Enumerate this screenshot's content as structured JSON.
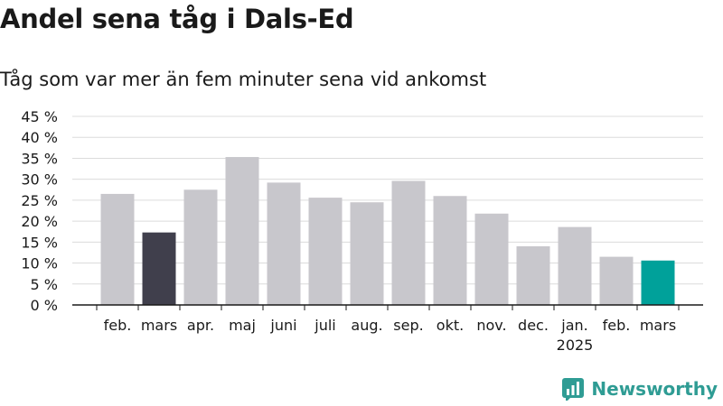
{
  "title": "Andel sena tåg i Dals-Ed",
  "subtitle": "Tåg som var mer än fem minuter sena vid ankomst",
  "brand": {
    "name": "Newsworthy"
  },
  "colors": {
    "bar": "#c8c7cc",
    "highlight_dark": "#403f4c",
    "highlight_current": "#00a19a",
    "grid": "#dcdcdc",
    "axis": "#1a1a1a",
    "brand": "#2f9c94"
  },
  "chart_data": {
    "type": "bar",
    "categories": [
      "feb.",
      "mars",
      "apr.",
      "maj",
      "juni",
      "juli",
      "aug.",
      "sep.",
      "okt.",
      "nov.",
      "dec.",
      "jan.",
      "feb.",
      "mars"
    ],
    "values": [
      26.5,
      17.3,
      27.5,
      35.3,
      29.2,
      25.6,
      24.5,
      29.6,
      26.0,
      21.8,
      14.0,
      18.6,
      11.5,
      10.6
    ],
    "bar_colors": [
      "#c8c7cc",
      "#403f4c",
      "#c8c7cc",
      "#c8c7cc",
      "#c8c7cc",
      "#c8c7cc",
      "#c8c7cc",
      "#c8c7cc",
      "#c8c7cc",
      "#c8c7cc",
      "#c8c7cc",
      "#c8c7cc",
      "#c8c7cc",
      "#00a19a"
    ],
    "year_label": {
      "category_index": 11,
      "text": "2025"
    },
    "ylim": [
      0,
      45
    ],
    "y_ticks": [
      0,
      5,
      10,
      15,
      20,
      25,
      30,
      35,
      40,
      45
    ],
    "y_tick_labels": [
      "0 %",
      "5 %",
      "10 %",
      "15 %",
      "20 %",
      "25 %",
      "30 %",
      "35 %",
      "40 %",
      "45 %"
    ],
    "grid": true,
    "legend": "none"
  }
}
